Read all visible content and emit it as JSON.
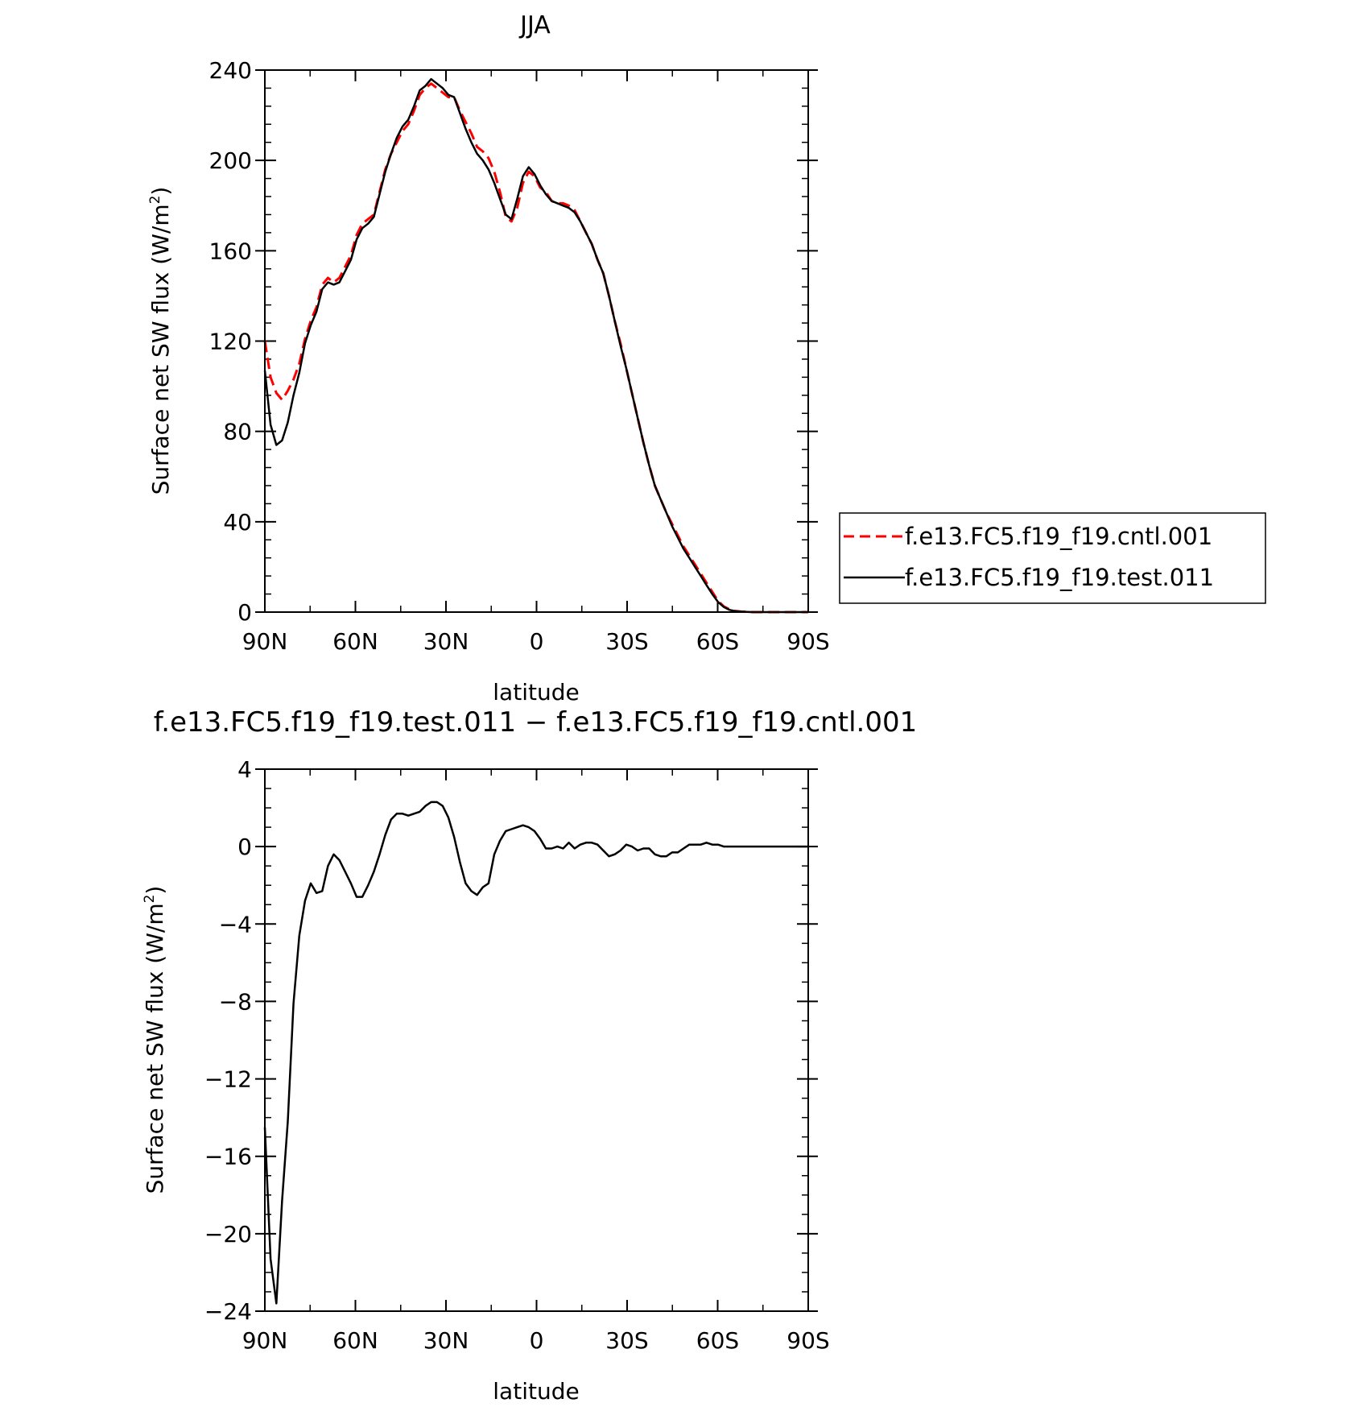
{
  "chart_data": [
    {
      "type": "line",
      "title": "JJA",
      "xlabel": "latitude",
      "ylabel": "Surface net SW flux (W/m",
      "ylabel_sup": "2",
      "ylabel_end": ")",
      "xlim": [
        90,
        -90
      ],
      "ylim": [
        0,
        240
      ],
      "xticks": [
        90,
        60,
        30,
        0,
        -30,
        -60,
        -90
      ],
      "xtick_labels": [
        "90N",
        "60N",
        "30N",
        "0",
        "30S",
        "60S",
        "90S"
      ],
      "yticks": [
        0,
        40,
        80,
        120,
        160,
        200,
        240
      ],
      "ytick_labels": [
        "0",
        "40",
        "80",
        "120",
        "160",
        "200",
        "240"
      ],
      "legend_position": "right",
      "series": [
        {
          "name": "f.e13.FC5.f19_f19.cntl.001",
          "color": "#ff0000",
          "style": "dashed",
          "x": [
            90,
            88.1,
            86.2,
            84.3,
            82.4,
            80.5,
            78.6,
            76.7,
            74.8,
            72.9,
            71,
            69.1,
            67.2,
            65.3,
            63.4,
            61.5,
            59.6,
            57.7,
            55.8,
            53.9,
            52,
            50.1,
            48.2,
            46.3,
            44.4,
            42.5,
            40.6,
            38.7,
            36.8,
            34.9,
            33,
            31.1,
            29.2,
            27.3,
            25.4,
            23.5,
            21.6,
            19.7,
            17.8,
            15.9,
            14,
            12.1,
            10.2,
            8.3,
            6.4,
            4.5,
            2.6,
            0.7,
            -1.2,
            -3.1,
            -5,
            -6.9,
            -8.8,
            -10.7,
            -12.6,
            -14.5,
            -16.4,
            -18.3,
            -20.2,
            -22.1,
            -24,
            -25.9,
            -27.8,
            -29.7,
            -31.6,
            -33.5,
            -35.4,
            -37.3,
            -39.2,
            -41.1,
            -43,
            -44.9,
            -46.8,
            -48.7,
            -50.6,
            -52.5,
            -54.4,
            -56.3,
            -58.2,
            -60.1,
            -62,
            -63.9,
            -65.8,
            -67.7,
            -69.6,
            -71.5,
            -73.4,
            -75.3,
            -77.2,
            -79.1,
            -81,
            -82.9,
            -84.8,
            -86.7,
            -88.6,
            -90
          ],
          "y": [
            120,
            104,
            97,
            94,
            98,
            103,
            110,
            121,
            129,
            135,
            145,
            148,
            146,
            148,
            153,
            158,
            167,
            172,
            174,
            176,
            186,
            196,
            203,
            208,
            213,
            216,
            222,
            229,
            232,
            234,
            232,
            230,
            228,
            228,
            222,
            217,
            212,
            206,
            204,
            201,
            195,
            186,
            175,
            173,
            179,
            190,
            195,
            193,
            188,
            186,
            182,
            181,
            181,
            180,
            178,
            173,
            168,
            163,
            156,
            150,
            140,
            129,
            119,
            108,
            97,
            86,
            75,
            65,
            56,
            50,
            44,
            39,
            34,
            29,
            25,
            21,
            17,
            13,
            9,
            5,
            2.5,
            1.2,
            0.5,
            0.2,
            0.1,
            0,
            0,
            0,
            0,
            0,
            0,
            0,
            0,
            0,
            0,
            0
          ]
        },
        {
          "name": "f.e13.FC5.f19_f19.test.011",
          "color": "#000000",
          "style": "solid",
          "x": [
            90,
            88.1,
            86.2,
            84.3,
            82.4,
            80.5,
            78.6,
            76.7,
            74.8,
            72.9,
            71,
            69.1,
            67.2,
            65.3,
            63.4,
            61.5,
            59.6,
            57.7,
            55.8,
            53.9,
            52,
            50.1,
            48.2,
            46.3,
            44.4,
            42.5,
            40.6,
            38.7,
            36.8,
            34.9,
            33,
            31.1,
            29.2,
            27.3,
            25.4,
            23.5,
            21.6,
            19.7,
            17.8,
            15.9,
            14,
            12.1,
            10.2,
            8.3,
            6.4,
            4.5,
            2.6,
            0.7,
            -1.2,
            -3.1,
            -5,
            -6.9,
            -8.8,
            -10.7,
            -12.6,
            -14.5,
            -16.4,
            -18.3,
            -20.2,
            -22.1,
            -24,
            -25.9,
            -27.8,
            -29.7,
            -31.6,
            -33.5,
            -35.4,
            -37.3,
            -39.2,
            -41.1,
            -43,
            -44.9,
            -46.8,
            -48.7,
            -50.6,
            -52.5,
            -54.4,
            -56.3,
            -58.2,
            -60.1,
            -62,
            -63.9,
            -65.8,
            -67.7,
            -69.6,
            -71.5,
            -73.4,
            -75.3,
            -77.2,
            -79.1,
            -81,
            -82.9,
            -84.8,
            -86.7,
            -88.6,
            -90
          ],
          "y": [
            107,
            83,
            74,
            76,
            84,
            96,
            106,
            119,
            127,
            133,
            143,
            146,
            145,
            146,
            151,
            156,
            165,
            170,
            172,
            175,
            185,
            195,
            203,
            210,
            215,
            218,
            224,
            231,
            233,
            236,
            234,
            232,
            229,
            228,
            221,
            214,
            208,
            203,
            200,
            196,
            190,
            183,
            176,
            174,
            183,
            193,
            197,
            194,
            189,
            185,
            182,
            181,
            180,
            179,
            177,
            173,
            168,
            163,
            156,
            150,
            140,
            129,
            118,
            108,
            97,
            86,
            75,
            65,
            56,
            50,
            44,
            38,
            33,
            28,
            24,
            20,
            16,
            12,
            8,
            4.5,
            2.3,
            1,
            0.4,
            0.2,
            0.1,
            0,
            0,
            0,
            0,
            0,
            0,
            0,
            0,
            0,
            0,
            0
          ]
        }
      ]
    },
    {
      "type": "line",
      "title": "f.e13.FC5.f19_f19.test.011 − f.e13.FC5.f19_f19.cntl.001",
      "xlabel": "latitude",
      "ylabel": "Surface net SW flux (W/m",
      "ylabel_sup": "2",
      "ylabel_end": ")",
      "xlim": [
        90,
        -90
      ],
      "ylim": [
        -24,
        4
      ],
      "xticks": [
        90,
        60,
        30,
        0,
        -30,
        -60,
        -90
      ],
      "xtick_labels": [
        "90N",
        "60N",
        "30N",
        "0",
        "30S",
        "60S",
        "90S"
      ],
      "yticks": [
        -24,
        -20,
        -16,
        -12,
        -8,
        -4,
        0,
        4
      ],
      "ytick_labels": [
        "−24",
        "−20",
        "−16",
        "−12",
        "−8",
        "−4",
        "0",
        "4"
      ],
      "series": [
        {
          "color": "#000000",
          "style": "solid",
          "x": [
            90,
            88.1,
            86.2,
            84.3,
            82.4,
            80.5,
            78.6,
            76.7,
            74.8,
            72.9,
            71,
            69.1,
            67.2,
            65.3,
            63.4,
            61.5,
            59.6,
            57.7,
            55.8,
            53.9,
            52,
            50.1,
            48.2,
            46.3,
            44.4,
            42.5,
            40.6,
            38.7,
            36.8,
            34.9,
            33,
            31.1,
            29.2,
            27.3,
            25.4,
            23.5,
            21.6,
            19.7,
            17.8,
            15.9,
            14,
            12.1,
            10.2,
            8.3,
            6.4,
            4.5,
            2.6,
            0.7,
            -1.2,
            -3.1,
            -5,
            -6.9,
            -8.8,
            -10.7,
            -12.6,
            -14.5,
            -16.4,
            -18.3,
            -20.2,
            -22.1,
            -24,
            -25.9,
            -27.8,
            -29.7,
            -31.6,
            -33.5,
            -35.4,
            -37.3,
            -39.2,
            -41.1,
            -43,
            -44.9,
            -46.8,
            -48.7,
            -50.6,
            -52.5,
            -54.4,
            -56.3,
            -58.2,
            -60.1,
            -62,
            -63.9,
            -65.8,
            -67.7,
            -69.6,
            -71.5,
            -73.4,
            -75.3,
            -77.2,
            -79.1,
            -81,
            -82.9,
            -84.8,
            -86.7,
            -88.6,
            -90
          ],
          "y": [
            -14.5,
            -21.3,
            -23.6,
            -18.3,
            -14.2,
            -8.1,
            -4.6,
            -2.8,
            -1.9,
            -2.4,
            -2.3,
            -1,
            -0.4,
            -0.7,
            -1.3,
            -1.9,
            -2.6,
            -2.6,
            -2,
            -1.3,
            -0.4,
            0.6,
            1.4,
            1.7,
            1.7,
            1.6,
            1.7,
            1.8,
            2.1,
            2.3,
            2.3,
            2.1,
            1.5,
            0.5,
            -0.8,
            -1.9,
            -2.3,
            -2.5,
            -2.1,
            -1.9,
            -0.4,
            0.3,
            0.8,
            0.9,
            1,
            1.1,
            1,
            0.8,
            0.4,
            -0.1,
            -0.1,
            0,
            -0.1,
            0.2,
            -0.1,
            0.1,
            0.2,
            0.2,
            0.1,
            -0.2,
            -0.5,
            -0.4,
            -0.2,
            0.1,
            0,
            -0.2,
            -0.1,
            -0.1,
            -0.4,
            -0.5,
            -0.5,
            -0.3,
            -0.3,
            -0.1,
            0.1,
            0.1,
            0.1,
            0.2,
            0.1,
            0.1,
            0,
            0,
            0,
            0,
            0,
            0,
            0,
            0,
            0,
            0,
            0,
            0,
            0,
            0,
            0,
            0
          ]
        }
      ]
    }
  ]
}
